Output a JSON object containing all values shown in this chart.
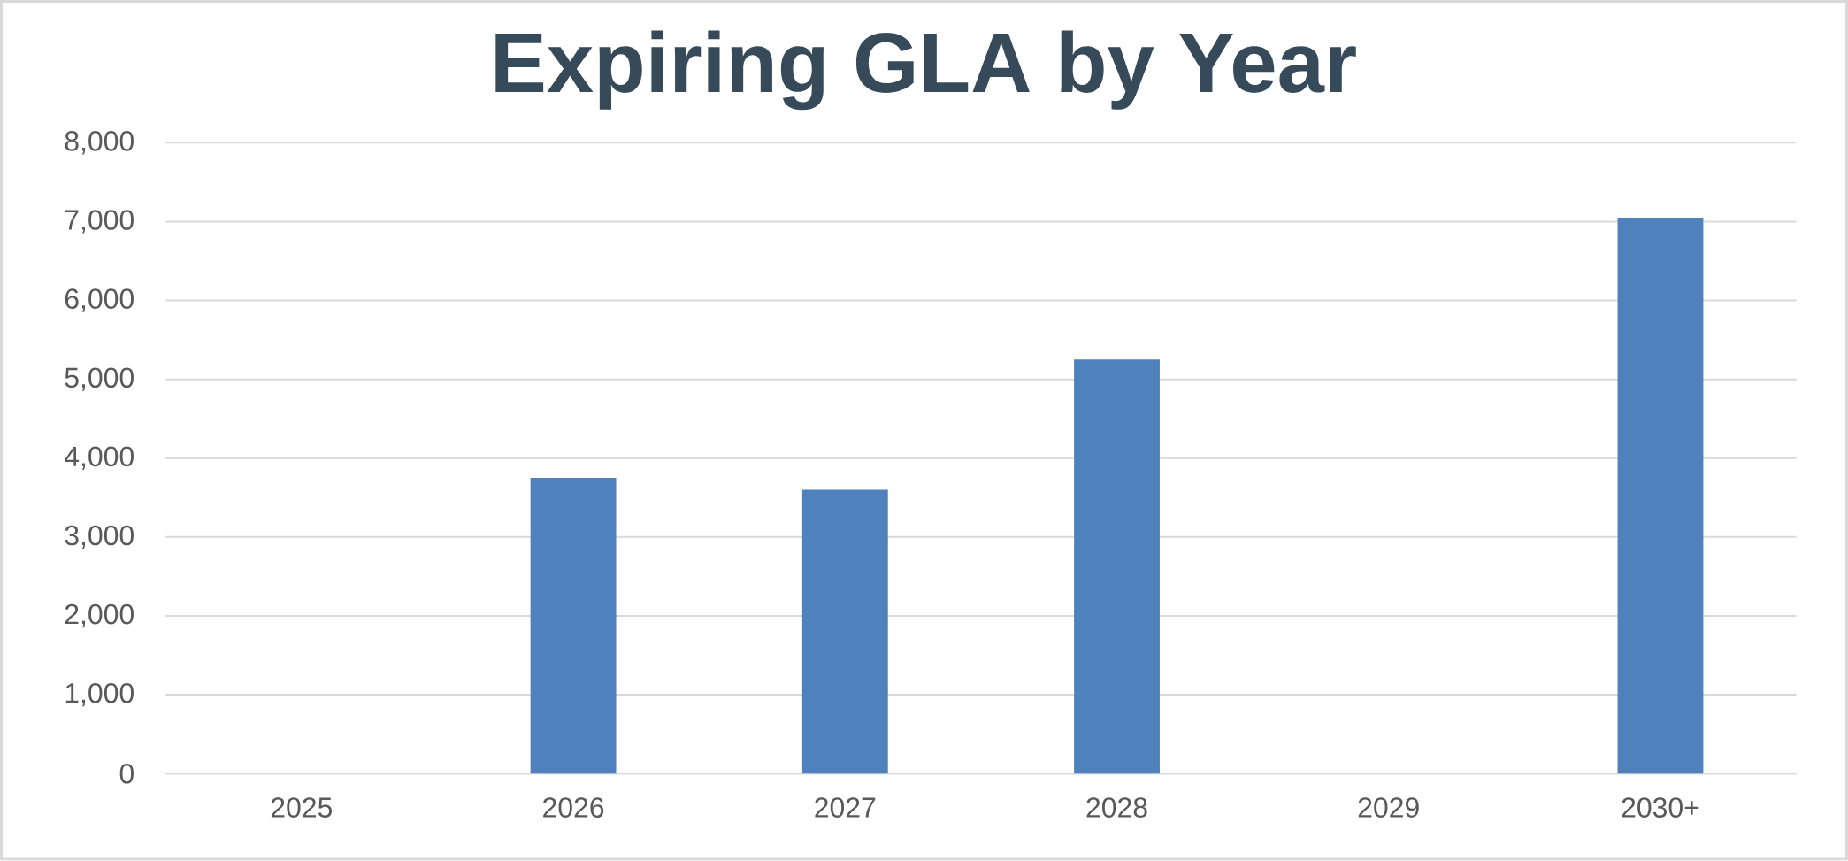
{
  "chart_data": {
    "type": "bar",
    "title": "Expiring GLA by Year",
    "categories": [
      "2025",
      "2026",
      "2027",
      "2028",
      "2029",
      "2030+"
    ],
    "values": [
      0,
      3750,
      3600,
      5250,
      0,
      7050
    ],
    "color": "#4f81bd",
    "ylim": [
      0,
      8000
    ],
    "yticks": [
      {
        "value": 0,
        "label": "0"
      },
      {
        "value": 1000,
        "label": "1,000"
      },
      {
        "value": 2000,
        "label": "2,000"
      },
      {
        "value": 3000,
        "label": "3,000"
      },
      {
        "value": 4000,
        "label": "4,000"
      },
      {
        "value": 5000,
        "label": "5,000"
      },
      {
        "value": 6000,
        "label": "6,000"
      },
      {
        "value": 7000,
        "label": "7,000"
      },
      {
        "value": 8000,
        "label": "8,000"
      }
    ],
    "grid": "y"
  }
}
